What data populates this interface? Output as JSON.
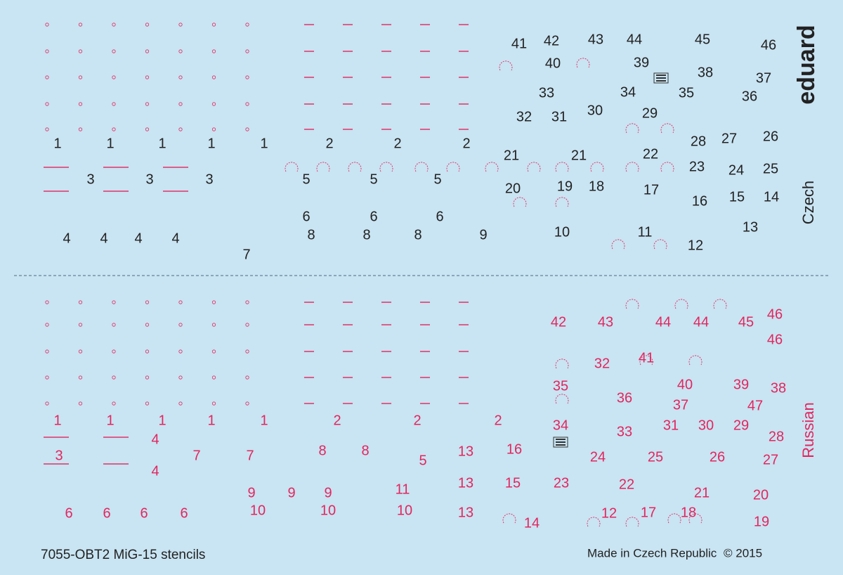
{
  "brand": "eduard",
  "sections": [
    {
      "name": "Czech",
      "color": "#222222",
      "labels": [
        "1",
        "1",
        "1",
        "1",
        "1",
        "2",
        "2",
        "2",
        "3",
        "3",
        "3",
        "4",
        "4",
        "4",
        "4",
        "5",
        "5",
        "5",
        "6",
        "6",
        "6",
        "7",
        "8",
        "8",
        "8",
        "9",
        "10",
        "11",
        "12",
        "13",
        "14",
        "15",
        "16",
        "17",
        "18",
        "19",
        "20",
        "21",
        "21",
        "22",
        "23",
        "24",
        "25",
        "26",
        "27",
        "28",
        "29",
        "30",
        "31",
        "32",
        "33",
        "34",
        "35",
        "36",
        "37",
        "38",
        "39",
        "40",
        "41",
        "42",
        "43",
        "44",
        "45",
        "46"
      ]
    },
    {
      "name": "Russian",
      "color": "#e3265f",
      "labels": [
        "1",
        "1",
        "1",
        "1",
        "1",
        "2",
        "2",
        "2",
        "3",
        "4",
        "4",
        "5",
        "6",
        "6",
        "6",
        "6",
        "7",
        "7",
        "8",
        "8",
        "9",
        "9",
        "9",
        "10",
        "10",
        "10",
        "11",
        "12",
        "13",
        "13",
        "13",
        "14",
        "15",
        "16",
        "17",
        "18",
        "19",
        "20",
        "21",
        "22",
        "23",
        "24",
        "25",
        "26",
        "27",
        "28",
        "29",
        "30",
        "31",
        "32",
        "33",
        "34",
        "35",
        "36",
        "37",
        "38",
        "39",
        "40",
        "41",
        "42",
        "43",
        "44",
        "44",
        "45",
        "46",
        "46",
        "47"
      ]
    }
  ],
  "footer": {
    "product": "7055-OBT2 MiG-15 stencils",
    "origin": "Made in Czech Republic",
    "copyright": "© 2015"
  }
}
